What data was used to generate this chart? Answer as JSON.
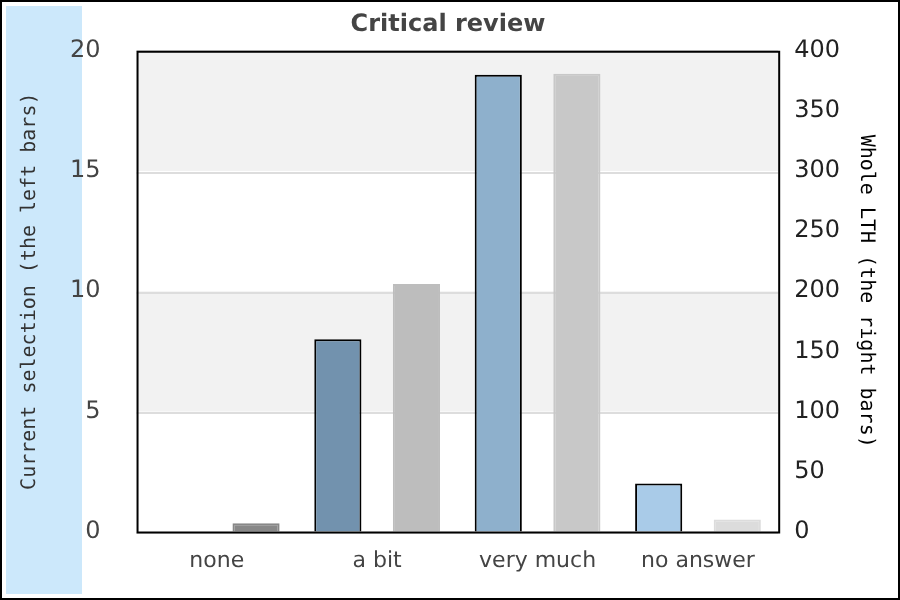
{
  "chart_data": {
    "type": "bar",
    "title": "Critical review",
    "ylabel": "Current selection (the left bars)",
    "y2label": "Whole LTH (the right bars)",
    "categories": [
      "none",
      "a bit",
      "very much",
      "no answer"
    ],
    "series": [
      {
        "colors": [
          "#5f7f9b",
          "#7292ae",
          "#8eb0cc",
          "#a9cbe8"
        ],
        "values": [
          0,
          8,
          19,
          2
        ]
      },
      {
        "colors": [
          "#888888",
          "#bdbdbd",
          "#c8c8c8",
          "#dcdcdc"
        ],
        "values": [
          7,
          206,
          381,
          10
        ],
        "axis": "y2"
      }
    ],
    "ylim": [
      0,
      20
    ],
    "yticks": [
      0,
      5,
      10,
      15,
      20
    ],
    "y2lim": [
      0,
      400
    ],
    "y2ticks": [
      0,
      50,
      100,
      150,
      200,
      250,
      300,
      350,
      400
    ],
    "grid": "y",
    "bands": [
      {
        "axis": "y",
        "from": 5,
        "to": 10,
        "color": "#f2f2f2"
      },
      {
        "axis": "y",
        "from": 15,
        "to": 20,
        "color": "#f2f2f2"
      }
    ],
    "legend": false
  }
}
